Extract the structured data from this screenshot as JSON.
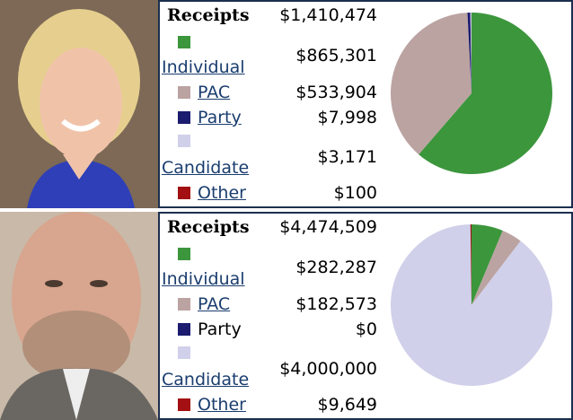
{
  "chart_data": [
    {
      "type": "pie",
      "title": "Receipts",
      "total": "$1,410,474",
      "categories": [
        "Individual",
        "PAC",
        "Party",
        "Candidate",
        "Other"
      ],
      "values": [
        865301,
        533904,
        7998,
        3171,
        100
      ],
      "value_labels": [
        "$865,301",
        "$533,904",
        "$7,998",
        "$3,171",
        "$100"
      ],
      "colors": [
        "#3c963c",
        "#bba3a2",
        "#1b1b6f",
        "#d0d0ea",
        "#a30f12"
      ],
      "linked": [
        true,
        true,
        true,
        true,
        true
      ]
    },
    {
      "type": "pie",
      "title": "Receipts",
      "total": "$4,474,509",
      "categories": [
        "Individual",
        "PAC",
        "Party",
        "Candidate",
        "Other"
      ],
      "values": [
        282287,
        182573,
        0,
        4000000,
        9649
      ],
      "value_labels": [
        "$282,287",
        "$182,573",
        "$0",
        "$4,000,000",
        "$9,649"
      ],
      "colors": [
        "#3c963c",
        "#bba3a2",
        "#1b1b6f",
        "#d0d0ea",
        "#a30f12"
      ],
      "linked": [
        true,
        true,
        false,
        true,
        true
      ]
    }
  ]
}
